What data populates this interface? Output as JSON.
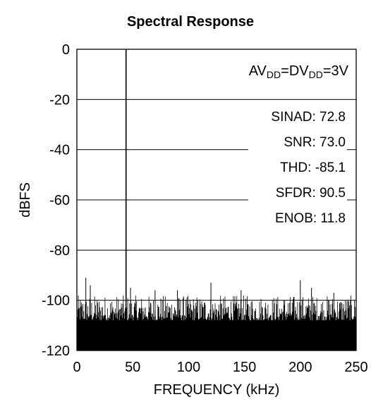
{
  "chart_data": {
    "type": "line",
    "title": "Spectral Response",
    "xlabel": "FREQUENCY (kHz)",
    "ylabel": "dBFS",
    "xlim": [
      0,
      250
    ],
    "ylim": [
      -120,
      0
    ],
    "xticks": [
      "0",
      "50",
      "100",
      "150",
      "200",
      "250"
    ],
    "yticks": [
      "0",
      "-20",
      "-40",
      "-60",
      "-80",
      "-100",
      "-120"
    ],
    "grid": "horizontal",
    "condition": {
      "parts": [
        {
          "text": "AV",
          "sub": false
        },
        {
          "text": "DD",
          "sub": true
        },
        {
          "text": "=DV",
          "sub": false
        },
        {
          "text": "DD",
          "sub": true
        },
        {
          "text": "=3V",
          "sub": false
        }
      ]
    },
    "stats": [
      {
        "label": "SINAD:",
        "value": "72.8"
      },
      {
        "label": "SNR:",
        "value": "73.0"
      },
      {
        "label": "THD:",
        "value": "-85.1"
      },
      {
        "label": "SFDR:",
        "value": "90.5"
      },
      {
        "label": "ENOB:",
        "value": "11.8"
      }
    ],
    "series": [
      {
        "fundamental": {
          "x": 44,
          "y": 0
        },
        "noise_floor_dbfs": [
          -120,
          -100
        ],
        "spurs": [
          {
            "x": 8,
            "y": -91
          },
          {
            "x": 12,
            "y": -94
          },
          {
            "x": 48,
            "y": -95
          },
          {
            "x": 70,
            "y": -96
          },
          {
            "x": 90,
            "y": -96
          },
          {
            "x": 120,
            "y": -93
          },
          {
            "x": 147,
            "y": -96
          },
          {
            "x": 200,
            "y": -92
          },
          {
            "x": 210,
            "y": -95
          },
          {
            "x": 230,
            "y": -97
          }
        ]
      }
    ]
  }
}
